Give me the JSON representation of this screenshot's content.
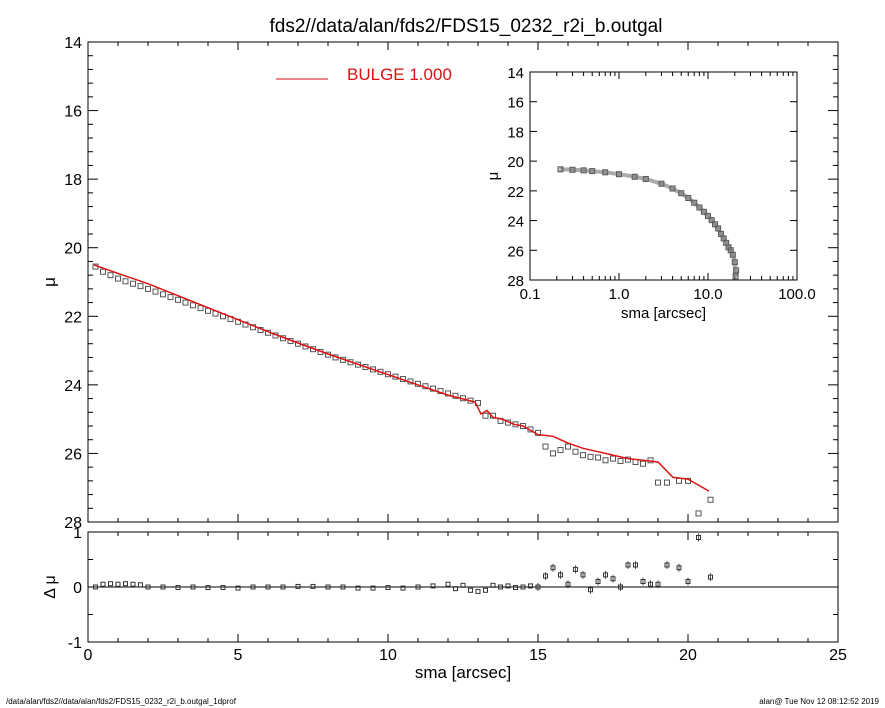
{
  "title": "fds2//data/alan/fds2/FDS15_0232_r2i_b.outgal",
  "footer": {
    "left": "/data/alan/fds2//data/alan/fds2/FDS15_0232_r2i_b.outgal_1dprof",
    "right": "alan@  Tue Nov 12 08:12:52 2019"
  },
  "colors": {
    "model": "#dd1111",
    "data": "#555555",
    "axes": "#000000"
  },
  "chart_data": [
    {
      "type": "scatter",
      "panel": "main",
      "xlabel": "sma [arcsec]",
      "ylabel": "μ",
      "xlim": [
        0,
        25
      ],
      "ylim": [
        28,
        14
      ],
      "y_inverted": true,
      "xticks": [
        0,
        5,
        10,
        15,
        20,
        25
      ],
      "yticks": [
        14,
        16,
        18,
        20,
        22,
        24,
        26,
        28
      ],
      "legend": {
        "label": "BULGE  1.000",
        "color": "#dd1111",
        "placement": "top-center"
      },
      "series": [
        {
          "name": "BULGE  1.000",
          "kind": "line",
          "x": [
            0.2,
            1.0,
            2.0,
            3.0,
            4.0,
            5.0,
            6.0,
            7.0,
            8.0,
            9.0,
            10.0,
            11.0,
            12.0,
            12.9,
            13.1,
            13.3,
            13.5,
            13.8,
            14.2,
            14.5,
            15.0,
            15.5,
            16.0,
            16.5,
            17.0,
            17.5,
            18.0,
            18.5,
            19.0,
            19.5,
            20.0,
            20.4,
            20.7
          ],
          "y": [
            20.5,
            20.75,
            21.05,
            21.4,
            21.75,
            22.1,
            22.45,
            22.78,
            23.1,
            23.4,
            23.7,
            24.0,
            24.3,
            24.5,
            24.85,
            24.75,
            24.95,
            25.0,
            25.15,
            25.2,
            25.45,
            25.5,
            25.7,
            25.85,
            25.95,
            26.05,
            26.15,
            26.2,
            26.25,
            26.7,
            26.75,
            26.95,
            27.1
          ]
        },
        {
          "name": "",
          "kind": "points",
          "x": [
            0.25,
            0.5,
            0.75,
            1.0,
            1.25,
            1.5,
            1.75,
            2.0,
            2.25,
            2.5,
            2.75,
            3.0,
            3.25,
            3.5,
            3.75,
            4.0,
            4.25,
            4.5,
            4.75,
            5.0,
            5.25,
            5.5,
            5.75,
            6.0,
            6.25,
            6.5,
            6.75,
            7.0,
            7.25,
            7.5,
            7.75,
            8.0,
            8.25,
            8.5,
            8.75,
            9.0,
            9.25,
            9.5,
            9.75,
            10.0,
            10.25,
            10.5,
            10.75,
            11.0,
            11.25,
            11.5,
            11.75,
            12.0,
            12.25,
            12.5,
            12.75,
            13.0,
            13.25,
            13.5,
            13.75,
            14.0,
            14.25,
            14.5,
            14.75,
            15.0,
            15.25,
            15.5,
            15.75,
            16.0,
            16.25,
            16.5,
            16.75,
            17.0,
            17.25,
            17.5,
            17.75,
            18.0,
            18.25,
            18.5,
            18.75,
            19.0,
            19.3,
            19.7,
            20.0,
            20.35,
            20.75
          ],
          "y": [
            20.55,
            20.7,
            20.8,
            20.9,
            20.98,
            21.05,
            21.12,
            21.2,
            21.28,
            21.36,
            21.44,
            21.52,
            21.6,
            21.68,
            21.76,
            21.84,
            21.92,
            22.0,
            22.08,
            22.16,
            22.24,
            22.32,
            22.4,
            22.48,
            22.56,
            22.64,
            22.72,
            22.8,
            22.88,
            22.96,
            23.04,
            23.12,
            23.2,
            23.27,
            23.34,
            23.41,
            23.48,
            23.55,
            23.62,
            23.69,
            23.76,
            23.83,
            23.9,
            23.97,
            24.04,
            24.11,
            24.18,
            24.25,
            24.32,
            24.39,
            24.46,
            24.53,
            24.9,
            24.9,
            25.05,
            25.1,
            25.15,
            25.2,
            25.3,
            25.4,
            25.8,
            26.0,
            25.9,
            25.8,
            25.95,
            26.05,
            26.1,
            26.12,
            26.2,
            26.15,
            26.22,
            26.18,
            26.25,
            26.3,
            26.2,
            26.85,
            26.85,
            26.8,
            26.8,
            27.75,
            27.35
          ]
        }
      ]
    },
    {
      "type": "scatter",
      "panel": "residual",
      "xlabel": "sma [arcsec]",
      "ylabel": "Δ μ",
      "xlim": [
        0,
        25
      ],
      "ylim": [
        -1,
        1
      ],
      "yticks": [
        -1,
        0,
        1
      ],
      "series": [
        {
          "name": "",
          "x": [
            0.25,
            0.5,
            0.75,
            1.0,
            1.25,
            1.5,
            1.75,
            2.0,
            2.5,
            3.0,
            3.5,
            4.0,
            4.5,
            5.0,
            5.5,
            6.0,
            6.5,
            7.0,
            7.5,
            8.0,
            8.5,
            9.0,
            9.5,
            10.0,
            10.5,
            11.0,
            11.5,
            12.0,
            12.25,
            12.5,
            12.75,
            13.0,
            13.25,
            13.5,
            13.75,
            14.0,
            14.25,
            14.5,
            14.75,
            15.0,
            15.25,
            15.5,
            15.75,
            16.0,
            16.25,
            16.5,
            16.75,
            17.0,
            17.25,
            17.5,
            17.75,
            18.0,
            18.25,
            18.5,
            18.75,
            19.0,
            19.3,
            19.7,
            20.0,
            20.35,
            20.75
          ],
          "y": [
            0.0,
            0.05,
            0.06,
            0.05,
            0.06,
            0.05,
            0.04,
            0.0,
            0.0,
            -0.01,
            0.0,
            -0.01,
            -0.01,
            -0.02,
            0.0,
            0.0,
            0.0,
            0.01,
            0.01,
            0.0,
            0.0,
            -0.02,
            -0.02,
            -0.01,
            -0.02,
            0.0,
            0.02,
            0.05,
            -0.03,
            0.03,
            -0.06,
            -0.08,
            -0.06,
            0.03,
            0.0,
            0.02,
            -0.01,
            0.0,
            0.02,
            0.0,
            0.2,
            0.35,
            0.22,
            0.05,
            0.32,
            0.22,
            -0.05,
            0.1,
            0.22,
            0.15,
            0.0,
            0.4,
            0.4,
            0.1,
            0.05,
            0.05,
            0.4,
            0.35,
            0.1,
            0.9,
            0.18
          ]
        }
      ]
    },
    {
      "type": "scatter",
      "panel": "inset",
      "xlabel": "sma [arcsec]",
      "ylabel": "μ",
      "xscale": "log",
      "xlim": [
        0.1,
        100.0
      ],
      "ylim": [
        28,
        14
      ],
      "xticklabels": [
        "0.1",
        "1.0",
        "10.0",
        "100.0"
      ],
      "yticks": [
        14,
        16,
        18,
        20,
        22,
        24,
        26,
        28
      ],
      "series": [
        {
          "name": "",
          "x": [
            0.22,
            0.3,
            0.4,
            0.5,
            0.7,
            1.0,
            1.5,
            2.0,
            3.0,
            4.0,
            5.0,
            6.0,
            7.0,
            8.0,
            9.0,
            10.0,
            11.0,
            12.0,
            13.0,
            14.0,
            15.0,
            16.0,
            17.0,
            18.0,
            19.0,
            20.0,
            20.4,
            20.7
          ],
          "y": [
            20.55,
            20.58,
            20.62,
            20.67,
            20.75,
            20.88,
            21.05,
            21.2,
            21.52,
            21.84,
            22.16,
            22.48,
            22.8,
            23.12,
            23.41,
            23.69,
            23.97,
            24.25,
            24.53,
            24.9,
            25.2,
            25.5,
            25.8,
            26.0,
            26.3,
            26.8,
            27.75,
            27.35
          ]
        }
      ]
    }
  ]
}
